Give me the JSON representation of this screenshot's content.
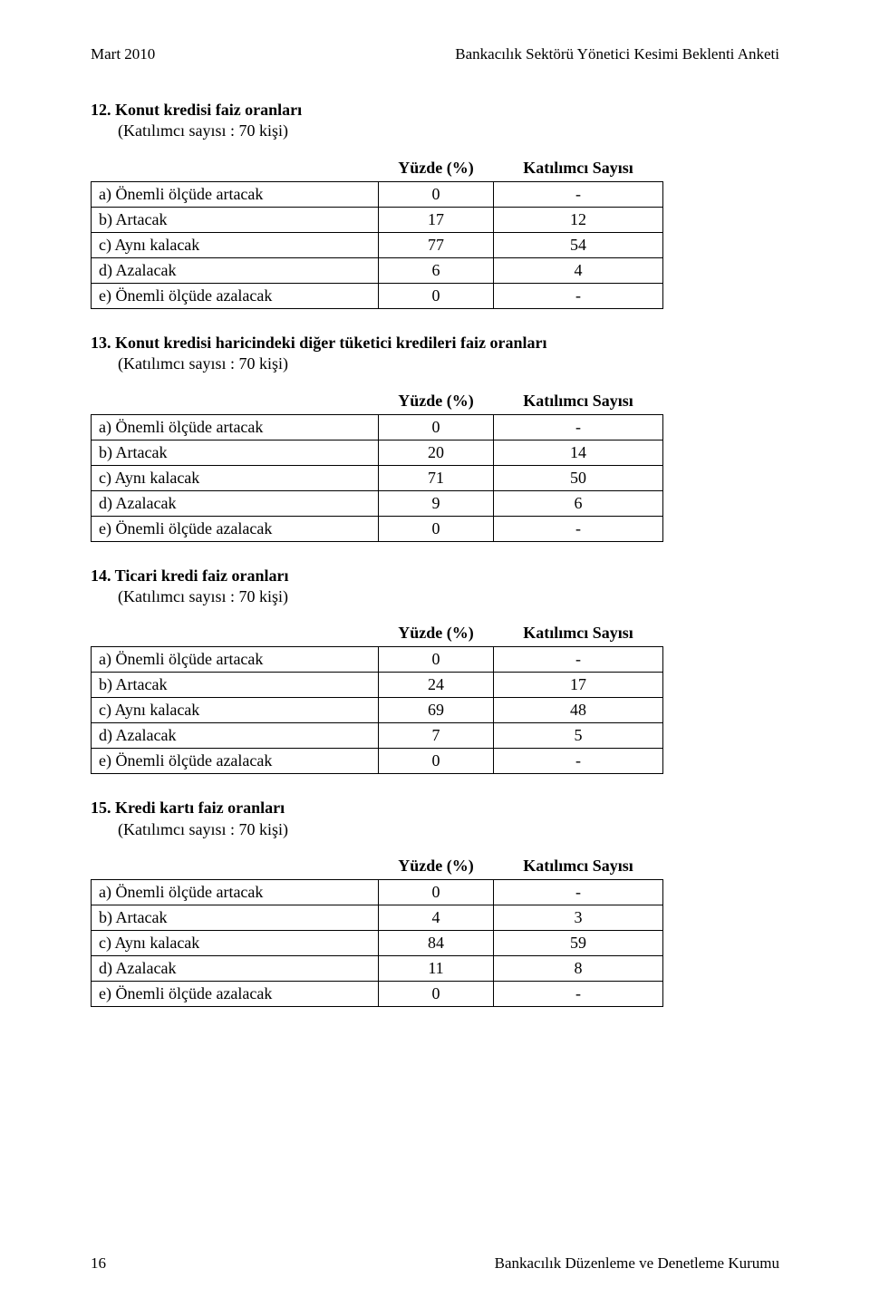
{
  "header": {
    "left": "Mart 2010",
    "right": "Bankacılık Sektörü Yönetici Kesimi Beklenti Anketi"
  },
  "colHeaders": {
    "col2": "Yüzde (%)",
    "col3": "Katılımcı Sayısı"
  },
  "sections": [
    {
      "title": "12. Konut kredisi faiz oranları",
      "subtitle": "(Katılımcı sayısı : 70 kişi)",
      "rows": [
        {
          "label": "a) Önemli ölçüde artacak",
          "v1": "0",
          "v2": "-"
        },
        {
          "label": "b) Artacak",
          "v1": "17",
          "v2": "12"
        },
        {
          "label": "c) Aynı kalacak",
          "v1": "77",
          "v2": "54"
        },
        {
          "label": "d) Azalacak",
          "v1": "6",
          "v2": "4"
        },
        {
          "label": "e) Önemli ölçüde azalacak",
          "v1": "0",
          "v2": "-"
        }
      ]
    },
    {
      "title": "13. Konut kredisi haricindeki diğer tüketici kredileri faiz oranları",
      "subtitle": "(Katılımcı sayısı : 70 kişi)",
      "rows": [
        {
          "label": "a) Önemli ölçüde artacak",
          "v1": "0",
          "v2": "-"
        },
        {
          "label": "b) Artacak",
          "v1": "20",
          "v2": "14"
        },
        {
          "label": "c) Aynı kalacak",
          "v1": "71",
          "v2": "50"
        },
        {
          "label": "d) Azalacak",
          "v1": "9",
          "v2": "6"
        },
        {
          "label": "e) Önemli ölçüde azalacak",
          "v1": "0",
          "v2": "-"
        }
      ]
    },
    {
      "title": "14. Ticari kredi faiz oranları",
      "subtitle": "(Katılımcı sayısı : 70 kişi)",
      "rows": [
        {
          "label": "a) Önemli ölçüde artacak",
          "v1": "0",
          "v2": "-"
        },
        {
          "label": "b) Artacak",
          "v1": "24",
          "v2": "17"
        },
        {
          "label": "c) Aynı kalacak",
          "v1": "69",
          "v2": "48"
        },
        {
          "label": "d) Azalacak",
          "v1": "7",
          "v2": "5"
        },
        {
          "label": "e) Önemli ölçüde azalacak",
          "v1": "0",
          "v2": "-"
        }
      ]
    },
    {
      "title": "15. Kredi kartı faiz oranları",
      "subtitle": "(Katılımcı sayısı : 70 kişi)",
      "rows": [
        {
          "label": "a) Önemli ölçüde artacak",
          "v1": "0",
          "v2": "-"
        },
        {
          "label": "b) Artacak",
          "v1": "4",
          "v2": "3"
        },
        {
          "label": "c) Aynı kalacak",
          "v1": "84",
          "v2": "59"
        },
        {
          "label": "d) Azalacak",
          "v1": "11",
          "v2": "8"
        },
        {
          "label": "e) Önemli ölçüde azalacak",
          "v1": "0",
          "v2": "-"
        }
      ]
    }
  ],
  "footer": {
    "pageNum": "16",
    "right": "Bankacılık Düzenleme ve Denetleme Kurumu"
  }
}
